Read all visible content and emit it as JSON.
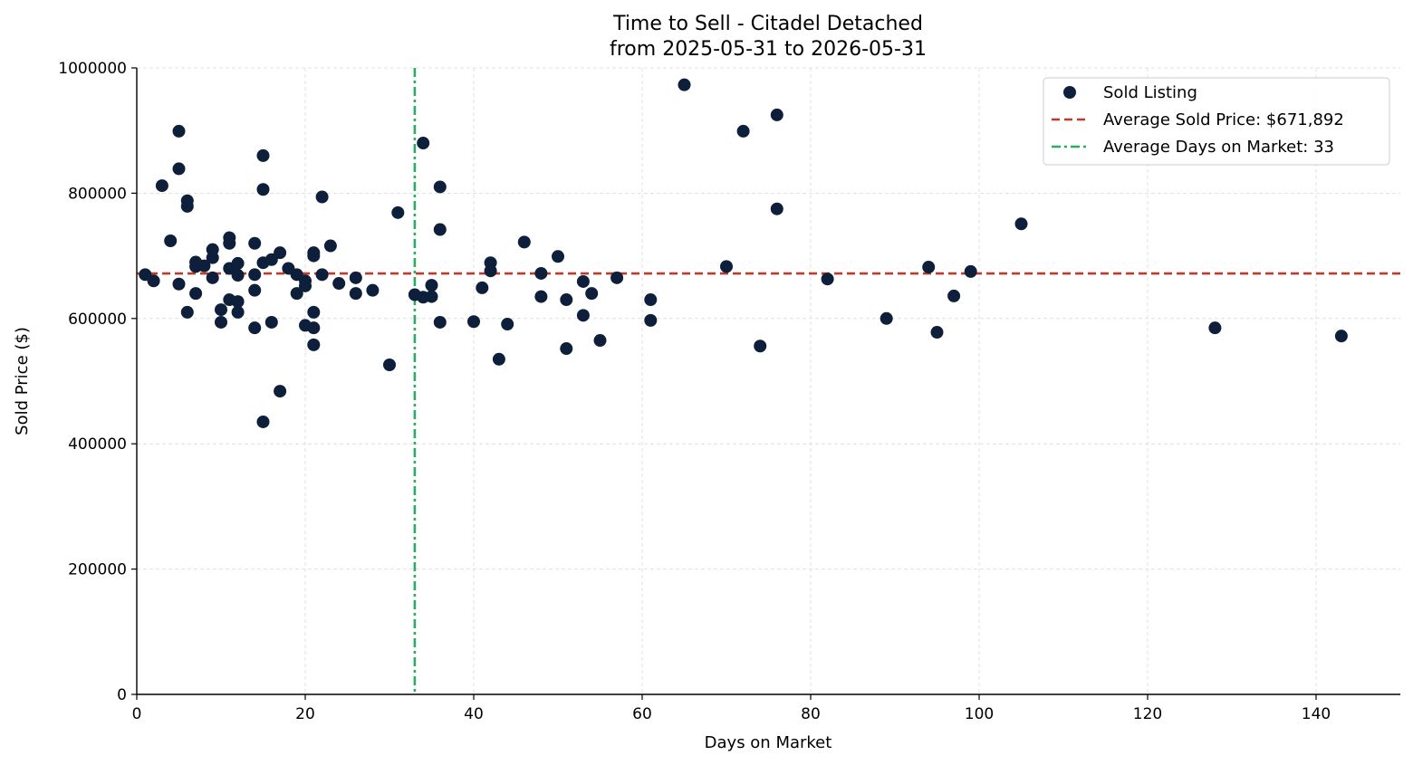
{
  "chart_data": {
    "type": "scatter",
    "title": "Time to Sell - Citadel Detached",
    "subtitle": "from 2025-05-31 to 2026-05-31",
    "xlabel": "Days on Market",
    "ylabel": "Sold Price ($)",
    "xlim": [
      0,
      150
    ],
    "ylim": [
      0,
      1000000
    ],
    "xticks": [
      "0",
      "20",
      "40",
      "60",
      "80",
      "100",
      "120",
      "140"
    ],
    "yticks": [
      "0",
      "200000",
      "400000",
      "600000",
      "800000",
      "1000000"
    ],
    "grid": true,
    "legend_position": "upper-right",
    "colors": {
      "points": "#0d1f3a",
      "avg_price_line": "#c0392b",
      "avg_days_line": "#27ae60"
    },
    "series": [
      {
        "name": "Sold Listing",
        "points": [
          [
            1,
            670000
          ],
          [
            2,
            660000
          ],
          [
            3,
            812000
          ],
          [
            4,
            724000
          ],
          [
            5,
            899000
          ],
          [
            5,
            839000
          ],
          [
            5,
            655000
          ],
          [
            6,
            788000
          ],
          [
            6,
            779000
          ],
          [
            6,
            610000
          ],
          [
            7,
            690000
          ],
          [
            7,
            683000
          ],
          [
            7,
            640000
          ],
          [
            8,
            684000
          ],
          [
            9,
            710000
          ],
          [
            9,
            697000
          ],
          [
            9,
            665000
          ],
          [
            10,
            614000
          ],
          [
            10,
            594000
          ],
          [
            11,
            729000
          ],
          [
            11,
            720000
          ],
          [
            11,
            680000
          ],
          [
            11,
            630000
          ],
          [
            12,
            688000
          ],
          [
            12,
            669000
          ],
          [
            12,
            627000
          ],
          [
            12,
            610000
          ],
          [
            14,
            720000
          ],
          [
            14,
            670000
          ],
          [
            14,
            645000
          ],
          [
            14,
            585000
          ],
          [
            15,
            860000
          ],
          [
            15,
            806000
          ],
          [
            15,
            689000
          ],
          [
            15,
            435000
          ],
          [
            16,
            694000
          ],
          [
            16,
            594000
          ],
          [
            17,
            705000
          ],
          [
            17,
            484000
          ],
          [
            18,
            680000
          ],
          [
            19,
            670000
          ],
          [
            19,
            640000
          ],
          [
            20,
            660000
          ],
          [
            20,
            652000
          ],
          [
            20,
            589000
          ],
          [
            21,
            705000
          ],
          [
            21,
            700000
          ],
          [
            21,
            610000
          ],
          [
            21,
            585000
          ],
          [
            21,
            558000
          ],
          [
            22,
            794000
          ],
          [
            22,
            670000
          ],
          [
            23,
            716000
          ],
          [
            24,
            656000
          ],
          [
            26,
            665000
          ],
          [
            26,
            640000
          ],
          [
            28,
            645000
          ],
          [
            30,
            526000
          ],
          [
            31,
            769000
          ],
          [
            33,
            638000
          ],
          [
            34,
            880000
          ],
          [
            34,
            634000
          ],
          [
            35,
            653000
          ],
          [
            35,
            635000
          ],
          [
            36,
            810000
          ],
          [
            36,
            742000
          ],
          [
            36,
            594000
          ],
          [
            40,
            595000
          ],
          [
            41,
            649000
          ],
          [
            42,
            689000
          ],
          [
            42,
            676000
          ],
          [
            43,
            535000
          ],
          [
            44,
            591000
          ],
          [
            46,
            722000
          ],
          [
            48,
            672000
          ],
          [
            48,
            635000
          ],
          [
            50,
            699000
          ],
          [
            51,
            630000
          ],
          [
            51,
            552000
          ],
          [
            53,
            659000
          ],
          [
            53,
            605000
          ],
          [
            54,
            640000
          ],
          [
            55,
            565000
          ],
          [
            57,
            665000
          ],
          [
            61,
            630000
          ],
          [
            61,
            597000
          ],
          [
            65,
            973000
          ],
          [
            70,
            683000
          ],
          [
            72,
            899000
          ],
          [
            74,
            556000
          ],
          [
            76,
            925000
          ],
          [
            76,
            775000
          ],
          [
            82,
            663000
          ],
          [
            89,
            600000
          ],
          [
            94,
            682000
          ],
          [
            95,
            578000
          ],
          [
            97,
            636000
          ],
          [
            99,
            675000
          ],
          [
            105,
            751000
          ],
          [
            128,
            585000
          ],
          [
            143,
            572000
          ]
        ]
      },
      {
        "name": "Average Sold Price: $671,892",
        "type": "hline",
        "value": 671892
      },
      {
        "name": "Average Days on Market: 33",
        "type": "vline",
        "value": 33
      }
    ]
  }
}
